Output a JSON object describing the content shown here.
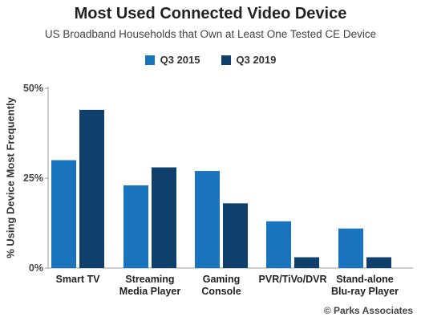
{
  "header": {
    "title": "Most Used Connected Video Device",
    "subtitle": "US Broadband Households that Own at Least One Tested CE Device"
  },
  "legend": [
    {
      "label": "Q3 2015",
      "color": "#1a73bd"
    },
    {
      "label": "Q3 2019",
      "color": "#0f3f6b"
    }
  ],
  "footer": {
    "source": "© Parks Associates"
  },
  "chart_data": {
    "type": "bar",
    "categories": [
      [
        "Smart TV"
      ],
      [
        "Streaming",
        "Media Player"
      ],
      [
        "Gaming",
        "Console"
      ],
      [
        "PVR/TiVo/DVR"
      ],
      [
        "Stand-alone",
        "Blu-ray Player"
      ]
    ],
    "series": [
      {
        "name": "Q3 2015",
        "color": "#1a73bd",
        "values": [
          30,
          23,
          27,
          13,
          11
        ]
      },
      {
        "name": "Q3 2019",
        "color": "#0f3f6b",
        "values": [
          44,
          28,
          18,
          3,
          3
        ]
      }
    ],
    "ylabel": "% Using Device Most Frequently",
    "ylim": [
      0,
      50
    ],
    "yticks": [
      0,
      25,
      50
    ],
    "ytick_labels": [
      "0%",
      "25%",
      "50%"
    ],
    "grid": false,
    "legend_position": "top-center"
  }
}
